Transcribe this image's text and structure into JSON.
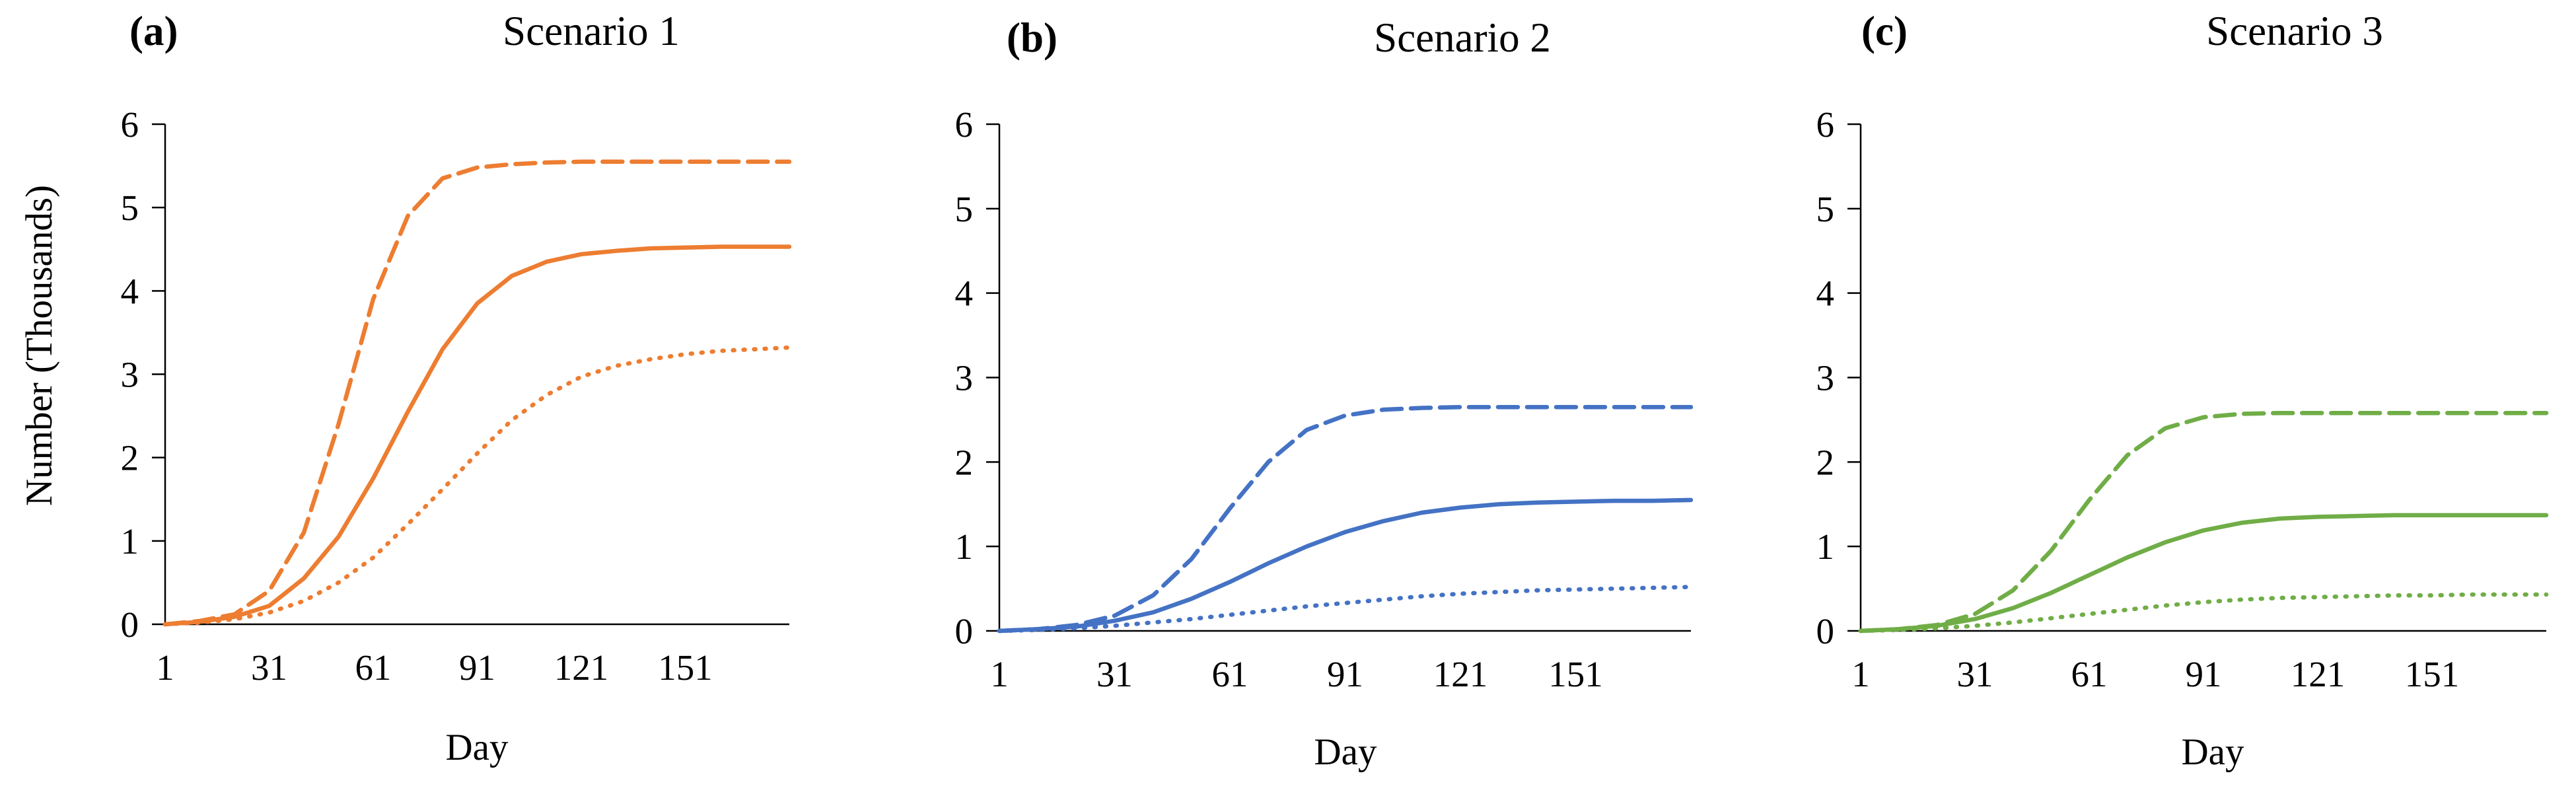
{
  "chart_data": [
    {
      "type": "line",
      "panel": "(a)",
      "title": "Scenario 1",
      "xlabel": "Day",
      "ylabel": "Number (Thousands)",
      "ylim": [
        0,
        6
      ],
      "xlim": [
        1,
        181
      ],
      "x_ticks": [
        "1",
        "31",
        "61",
        "91",
        "121",
        "151"
      ],
      "y_ticks": [
        "0",
        "1",
        "2",
        "3",
        "4",
        "5",
        "6"
      ],
      "color": "#ED7D31",
      "x": [
        1,
        11,
        21,
        31,
        41,
        51,
        61,
        71,
        81,
        91,
        101,
        111,
        121,
        131,
        141,
        151,
        161,
        171,
        181
      ],
      "series": [
        {
          "name": "upper",
          "style": "dashed",
          "values": [
            0,
            0.04,
            0.12,
            0.4,
            1.1,
            2.4,
            3.9,
            4.9,
            5.35,
            5.48,
            5.52,
            5.54,
            5.55,
            5.55,
            5.55,
            5.55,
            5.55,
            5.55,
            5.55
          ]
        },
        {
          "name": "central",
          "style": "solid",
          "values": [
            0,
            0.03,
            0.09,
            0.22,
            0.55,
            1.05,
            1.75,
            2.55,
            3.3,
            3.85,
            4.18,
            4.35,
            4.44,
            4.48,
            4.51,
            4.52,
            4.53,
            4.53,
            4.53
          ]
        },
        {
          "name": "lower",
          "style": "dotted",
          "values": [
            0,
            0.02,
            0.06,
            0.14,
            0.28,
            0.5,
            0.8,
            1.2,
            1.62,
            2.05,
            2.45,
            2.75,
            2.97,
            3.1,
            3.18,
            3.24,
            3.28,
            3.3,
            3.32
          ]
        }
      ]
    },
    {
      "type": "line",
      "panel": "(b)",
      "title": "Scenario 2",
      "xlabel": "Day",
      "ylabel": "",
      "ylim": [
        0,
        6
      ],
      "xlim": [
        1,
        181
      ],
      "x_ticks": [
        "1",
        "31",
        "61",
        "91",
        "121",
        "151"
      ],
      "y_ticks": [
        "0",
        "1",
        "2",
        "3",
        "4",
        "5",
        "6"
      ],
      "color": "#4472C4",
      "x": [
        1,
        11,
        21,
        31,
        41,
        51,
        61,
        71,
        81,
        91,
        101,
        111,
        121,
        131,
        141,
        151,
        161,
        171,
        181
      ],
      "series": [
        {
          "name": "upper",
          "style": "dashed",
          "values": [
            0,
            0.02,
            0.07,
            0.18,
            0.42,
            0.85,
            1.45,
            2.0,
            2.38,
            2.55,
            2.62,
            2.64,
            2.65,
            2.65,
            2.65,
            2.65,
            2.65,
            2.65,
            2.65
          ]
        },
        {
          "name": "central",
          "style": "solid",
          "values": [
            0,
            0.02,
            0.05,
            0.12,
            0.22,
            0.38,
            0.58,
            0.8,
            1.0,
            1.17,
            1.3,
            1.4,
            1.46,
            1.5,
            1.52,
            1.53,
            1.54,
            1.54,
            1.55
          ]
        },
        {
          "name": "lower",
          "style": "dotted",
          "values": [
            0,
            0.01,
            0.03,
            0.06,
            0.1,
            0.14,
            0.19,
            0.24,
            0.29,
            0.33,
            0.37,
            0.41,
            0.44,
            0.46,
            0.48,
            0.49,
            0.5,
            0.51,
            0.52
          ]
        }
      ]
    },
    {
      "type": "line",
      "panel": "(c)",
      "title": "Scenario 3",
      "xlabel": "Day",
      "ylabel": "",
      "ylim": [
        0,
        6
      ],
      "xlim": [
        1,
        181
      ],
      "x_ticks": [
        "1",
        "31",
        "61",
        "91",
        "121",
        "151"
      ],
      "y_ticks": [
        "0",
        "1",
        "2",
        "3",
        "4",
        "5",
        "6"
      ],
      "color": "#70AD47",
      "x": [
        1,
        11,
        21,
        31,
        41,
        51,
        61,
        71,
        81,
        91,
        101,
        111,
        121,
        131,
        141,
        151,
        161,
        171,
        181
      ],
      "series": [
        {
          "name": "upper",
          "style": "dashed",
          "values": [
            0,
            0.02,
            0.07,
            0.2,
            0.48,
            0.95,
            1.55,
            2.08,
            2.4,
            2.53,
            2.57,
            2.58,
            2.58,
            2.58,
            2.58,
            2.58,
            2.58,
            2.58,
            2.58
          ]
        },
        {
          "name": "central",
          "style": "solid",
          "values": [
            0,
            0.02,
            0.06,
            0.14,
            0.27,
            0.45,
            0.66,
            0.87,
            1.05,
            1.19,
            1.28,
            1.33,
            1.35,
            1.36,
            1.37,
            1.37,
            1.37,
            1.37,
            1.37
          ]
        },
        {
          "name": "lower",
          "style": "dotted",
          "values": [
            0,
            0.01,
            0.03,
            0.06,
            0.1,
            0.15,
            0.2,
            0.25,
            0.3,
            0.34,
            0.37,
            0.39,
            0.4,
            0.41,
            0.42,
            0.42,
            0.43,
            0.43,
            0.43
          ]
        }
      ]
    }
  ]
}
